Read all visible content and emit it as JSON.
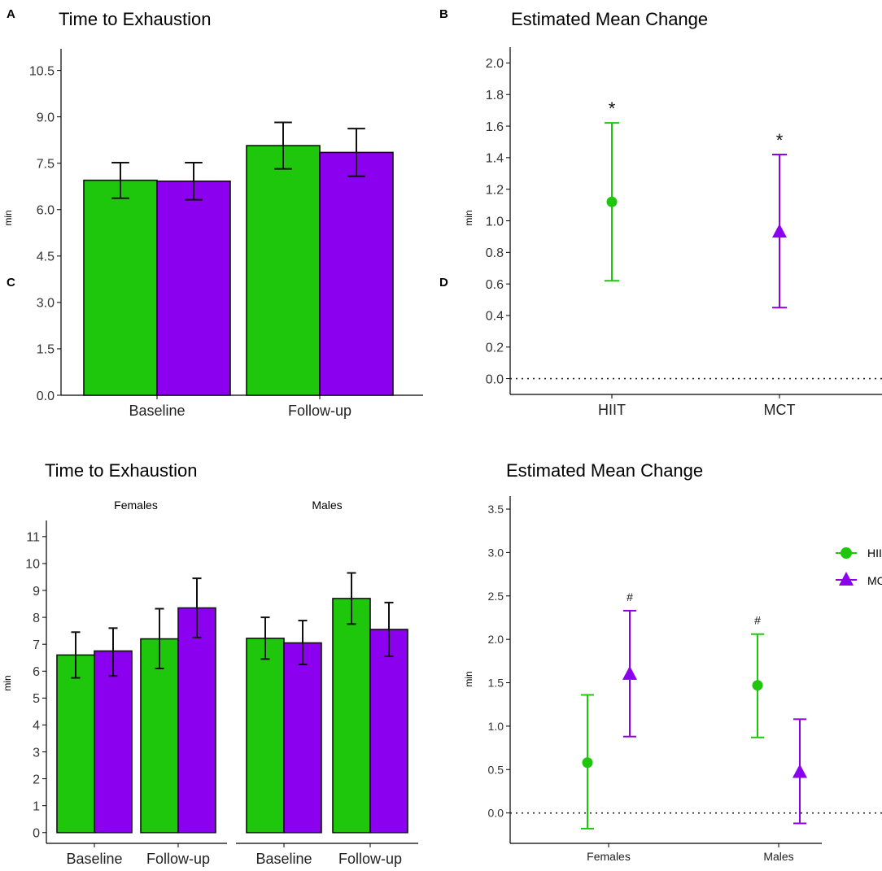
{
  "colors": {
    "hiit": "#1ec70b",
    "mct": "#8b00ef",
    "axis": "#000000"
  },
  "chart_data": [
    {
      "type": "bar",
      "panel": "A",
      "title": "Time to Exhaustion",
      "xlabel": "",
      "ylabel": "min",
      "categories": [
        "Baseline",
        "Follow-up"
      ],
      "ylim": [
        0,
        11.2
      ],
      "yticks": [
        "0.0",
        "1.5",
        "3.0",
        "4.5",
        "6.0",
        "7.5",
        "9.0",
        "10.5"
      ],
      "series": [
        {
          "name": "HIIT",
          "values": [
            6.95,
            8.07
          ],
          "err_low": [
            6.37,
            7.32
          ],
          "err_high": [
            7.52,
            8.82
          ]
        },
        {
          "name": "MCT",
          "values": [
            6.92,
            7.85
          ],
          "err_low": [
            6.32,
            7.08
          ],
          "err_high": [
            7.52,
            8.62
          ]
        }
      ]
    },
    {
      "type": "scatter",
      "panel": "B",
      "title": "Estimated Mean Change",
      "xlabel": "",
      "ylabel": "min",
      "categories": [
        "HIIT",
        "MCT"
      ],
      "ylim": [
        -0.1,
        2.1
      ],
      "yticks": [
        "0.0",
        "0.2",
        "0.4",
        "0.6",
        "0.8",
        "1.0",
        "1.2",
        "1.4",
        "1.6",
        "1.8",
        "2.0"
      ],
      "reference_line": 0,
      "points": [
        {
          "group": "HIIT",
          "value": 1.12,
          "ci_low": 0.62,
          "ci_high": 1.62,
          "marker": "circle",
          "annotation": "*"
        },
        {
          "group": "MCT",
          "value": 0.93,
          "ci_low": 0.45,
          "ci_high": 1.42,
          "marker": "triangle",
          "annotation": "*"
        }
      ]
    },
    {
      "type": "bar",
      "panel": "C",
      "title": "Time to Exhaustion",
      "xlabel": "",
      "ylabel": "min",
      "facets": [
        "Females",
        "Males"
      ],
      "categories": [
        "Baseline",
        "Follow-up"
      ],
      "ylim": [
        -0.4,
        11.6
      ],
      "yticks": [
        "0",
        "1",
        "2",
        "3",
        "4",
        "5",
        "6",
        "7",
        "8",
        "9",
        "10",
        "11"
      ],
      "data": [
        {
          "facet": "Females",
          "series": [
            {
              "name": "HIIT",
              "values": [
                6.6,
                7.2
              ],
              "err_low": [
                5.75,
                6.1
              ],
              "err_high": [
                7.45,
                8.32
              ]
            },
            {
              "name": "MCT",
              "values": [
                6.75,
                8.35
              ],
              "err_low": [
                5.82,
                7.25
              ],
              "err_high": [
                7.6,
                9.45
              ]
            }
          ]
        },
        {
          "facet": "Males",
          "series": [
            {
              "name": "HIIT",
              "values": [
                7.22,
                8.7
              ],
              "err_low": [
                6.45,
                7.75
              ],
              "err_high": [
                8.0,
                9.65
              ]
            },
            {
              "name": "MCT",
              "values": [
                7.05,
                7.55
              ],
              "err_low": [
                6.25,
                6.55
              ],
              "err_high": [
                7.88,
                8.55
              ]
            }
          ]
        }
      ]
    },
    {
      "type": "scatter",
      "panel": "D",
      "title": "Estimated Mean Change",
      "xlabel": "",
      "ylabel": "min",
      "categories": [
        "Females",
        "Males"
      ],
      "ylim": [
        -0.35,
        3.65
      ],
      "yticks": [
        "0.0",
        "0.5",
        "1.0",
        "1.5",
        "2.0",
        "2.5",
        "3.0",
        "3.5"
      ],
      "reference_line": 0,
      "legend": {
        "position": "right",
        "entries": [
          "HIIT",
          "MCT"
        ]
      },
      "points": [
        {
          "category": "Females",
          "group": "HIIT",
          "value": 0.58,
          "ci_low": -0.18,
          "ci_high": 1.36,
          "marker": "circle",
          "annotation": ""
        },
        {
          "category": "Females",
          "group": "MCT",
          "value": 1.6,
          "ci_low": 0.88,
          "ci_high": 2.33,
          "marker": "triangle",
          "annotation": "#"
        },
        {
          "category": "Males",
          "group": "HIIT",
          "value": 1.47,
          "ci_low": 0.87,
          "ci_high": 2.06,
          "marker": "circle",
          "annotation": "#"
        },
        {
          "category": "Males",
          "group": "MCT",
          "value": 0.47,
          "ci_low": -0.12,
          "ci_high": 1.08,
          "marker": "triangle",
          "annotation": ""
        }
      ]
    }
  ]
}
